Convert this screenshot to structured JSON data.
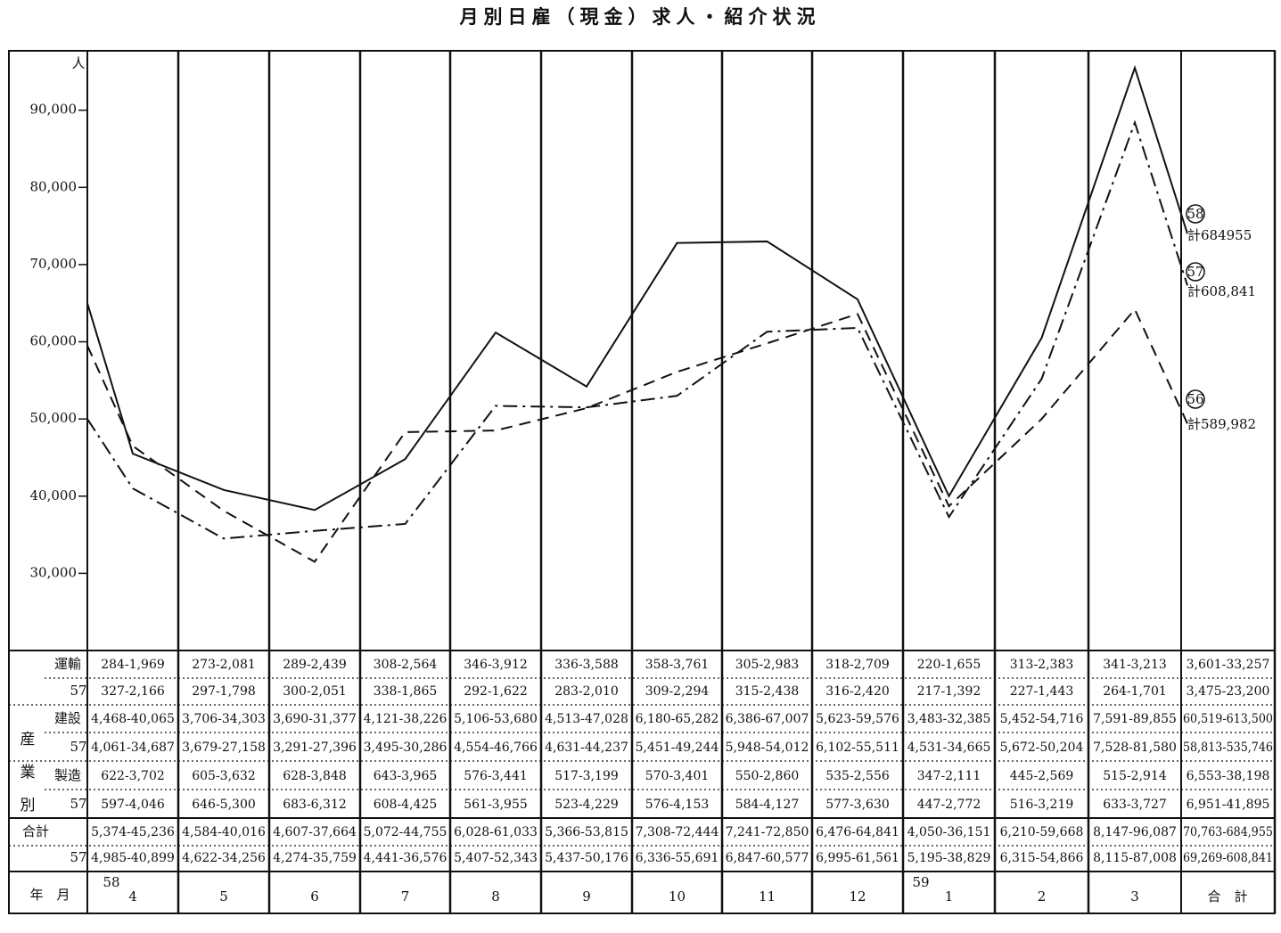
{
  "chart_data": {
    "type": "line",
    "title": "月別日雇（現金）求人・紹介状況",
    "unit": "人",
    "categories": [
      null,
      "4",
      "5",
      "6",
      "7",
      "8",
      "9",
      "10",
      "11",
      "12",
      "1",
      "2",
      "3",
      null
    ],
    "year_labels": [
      "58",
      "59"
    ],
    "ylim": [
      20000,
      97700
    ],
    "yticks": [
      {
        "value": 30000,
        "label": "30,000"
      },
      {
        "value": 40000,
        "label": "40,000"
      },
      {
        "value": 50000,
        "label": "50,000"
      },
      {
        "value": 60000,
        "label": "60,000"
      },
      {
        "value": 70000,
        "label": "70,000"
      },
      {
        "value": 80000,
        "label": "80,000"
      },
      {
        "value": 90000,
        "label": "90,000"
      }
    ],
    "series": [
      {
        "name": "58",
        "total_label": "計684955",
        "color": "#111",
        "style": "solid",
        "values": [
          65000,
          45500,
          40800,
          38200,
          44800,
          61200,
          54200,
          72800,
          73000,
          65500,
          40000,
          60500,
          95500,
          74000
        ]
      },
      {
        "name": "57",
        "total_label": "計608,841",
        "color": "#111",
        "style": "dashdot",
        "values": [
          50000,
          41000,
          34500,
          35500,
          36400,
          51700,
          51500,
          53000,
          61300,
          61800,
          37300,
          55200,
          88400,
          67300
        ]
      },
      {
        "name": "56",
        "total_label": "計589,982",
        "color": "#111",
        "style": "dashed",
        "values": [
          59500,
          46500,
          38100,
          31500,
          48300,
          48500,
          51400,
          56100,
          59800,
          63600,
          38700,
          50000,
          64200,
          49400
        ]
      }
    ]
  },
  "table": {
    "side_label": "産業別",
    "row_labels": [
      "運輸",
      "57",
      "建設",
      "57",
      "製造",
      "57",
      "合計",
      "57"
    ],
    "rows": [
      [
        "284-1,969",
        "273-2,081",
        "289-2,439",
        "308-2,564",
        "346-3,912",
        "336-3,588",
        "358-3,761",
        "305-2,983",
        "318-2,709",
        "220-1,655",
        "313-2,383",
        "341-3,213",
        "3,601-33,257"
      ],
      [
        "327-2,166",
        "297-1,798",
        "300-2,051",
        "338-1,865",
        "292-1,622",
        "283-2,010",
        "309-2,294",
        "315-2,438",
        "316-2,420",
        "217-1,392",
        "227-1,443",
        "264-1,701",
        "3,475-23,200"
      ],
      [
        "4,468-40,065",
        "3,706-34,303",
        "3,690-31,377",
        "4,121-38,226",
        "5,106-53,680",
        "4,513-47,028",
        "6,180-65,282",
        "6,386-67,007",
        "5,623-59,576",
        "3,483-32,385",
        "5,452-54,716",
        "7,591-89,855",
        "60,519-613,500"
      ],
      [
        "4,061-34,687",
        "3,679-27,158",
        "3,291-27,396",
        "3,495-30,286",
        "4,554-46,766",
        "4,631-44,237",
        "5,451-49,244",
        "5,948-54,012",
        "6,102-55,511",
        "4,531-34,665",
        "5,672-50,204",
        "7,528-81,580",
        "58,813-535,746"
      ],
      [
        "622-3,702",
        "605-3,632",
        "628-3,848",
        "643-3,965",
        "576-3,441",
        "517-3,199",
        "570-3,401",
        "550-2,860",
        "535-2,556",
        "347-2,111",
        "445-2,569",
        "515-2,914",
        "6,553-38,198"
      ],
      [
        "597-4,046",
        "646-5,300",
        "683-6,312",
        "608-4,425",
        "561-3,955",
        "523-4,229",
        "576-4,153",
        "584-4,127",
        "577-3,630",
        "447-2,772",
        "516-3,219",
        "633-3,727",
        "6,951-41,895"
      ],
      [
        "5,374-45,236",
        "4,584-40,016",
        "4,607-37,664",
        "5,072-44,755",
        "6,028-61,033",
        "5,366-53,815",
        "7,308-72,444",
        "7,241-72,850",
        "6,476-64,841",
        "4,050-36,151",
        "6,210-59,668",
        "8,147-96,087",
        "70,763-684,955"
      ],
      [
        "4,985-40,899",
        "4,622-34,256",
        "4,274-35,759",
        "4,441-36,576",
        "5,407-52,343",
        "5,437-50,176",
        "6,336-55,691",
        "6,847-60,577",
        "6,995-61,561",
        "5,195-38,829",
        "6,315-54,866",
        "8,115-87,008",
        "69,269-608,841"
      ]
    ],
    "footer_label": "年　月",
    "total_label": "合　計"
  }
}
